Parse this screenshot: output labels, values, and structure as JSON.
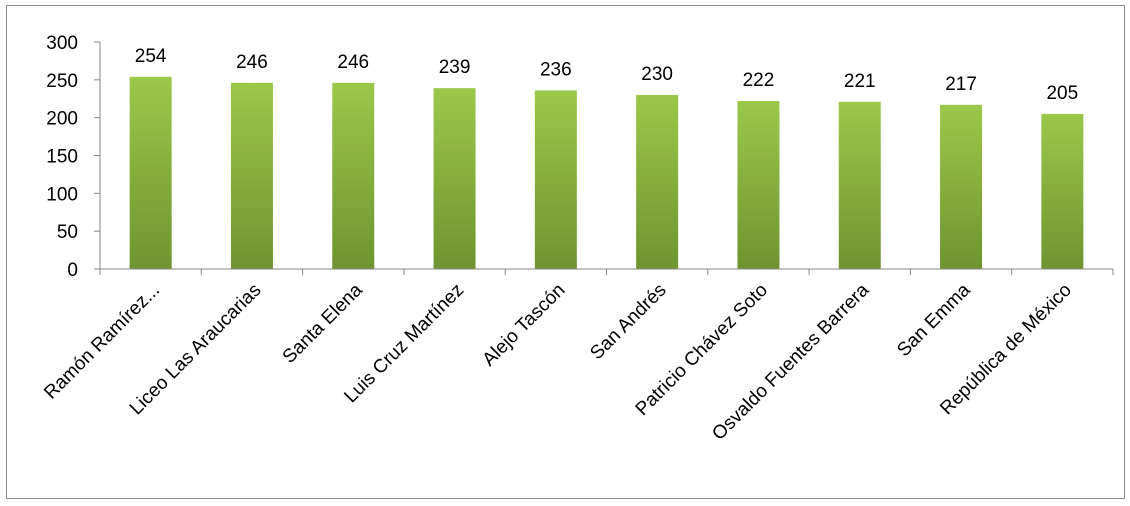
{
  "chart_data": {
    "type": "bar",
    "title": "",
    "xlabel": "",
    "ylabel": "",
    "ylim": [
      0,
      300
    ],
    "yticks": [
      0,
      50,
      100,
      150,
      200,
      250,
      300
    ],
    "grid": false,
    "legend": "none",
    "categories": [
      "Ramón Ramírez...",
      "Liceo Las Araucarias",
      "Santa Elena",
      "Luis Cruz Martínez",
      "Alejo Tascón",
      "San Andrés",
      "Patricio Chávez Soto",
      "Osvaldo Fuentes Barrera",
      "San Emma",
      "República de México"
    ],
    "values": [
      254,
      246,
      246,
      239,
      236,
      230,
      222,
      221,
      217,
      205
    ],
    "data_labels": [
      "254",
      "246",
      "246",
      "239",
      "236",
      "230",
      "222",
      "221",
      "217",
      "205"
    ],
    "colors": {
      "bar_top": "#9bc84a",
      "bar_bottom": "#6f9430",
      "axis": "#868686"
    }
  }
}
